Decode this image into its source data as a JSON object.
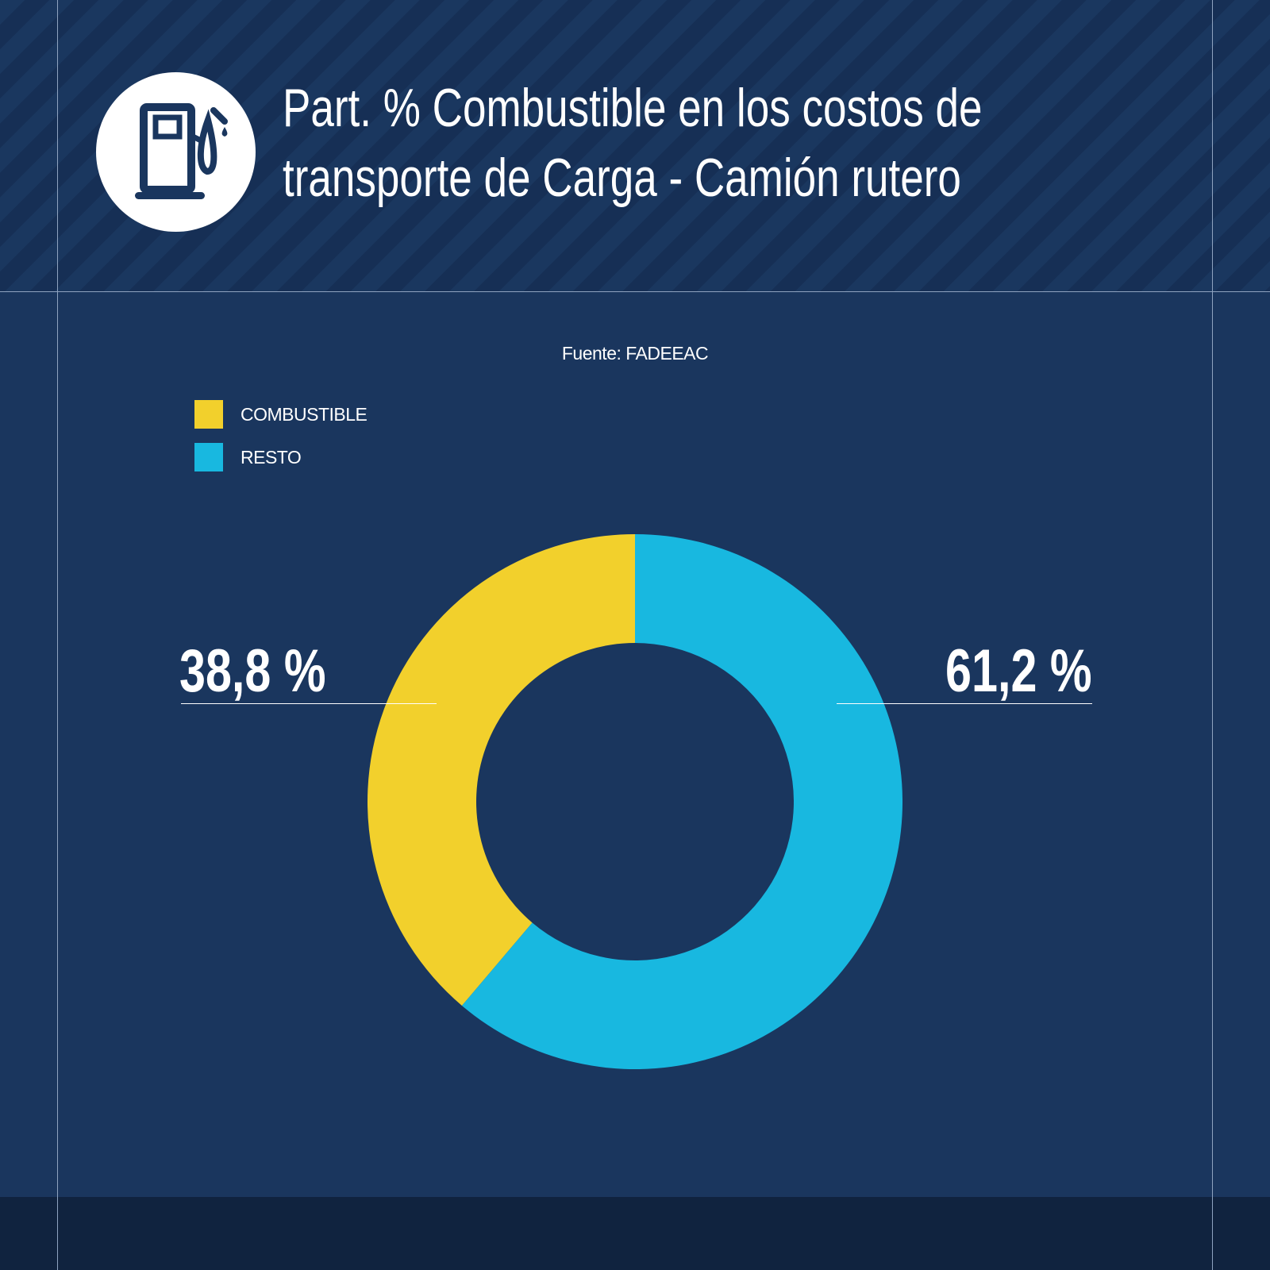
{
  "header": {
    "title_line1": "Part. % Combustible en los costos de",
    "title_line2": "transporte de Carga - Camión rutero",
    "icon": "fuel-pump-icon"
  },
  "source": "Fuente: FADEEAC",
  "colors": {
    "background": "#1a365e",
    "combustible": "#f2d02c",
    "resto": "#18b8e0"
  },
  "chart_data": {
    "type": "pie",
    "variant": "donut",
    "categories": [
      "COMBUSTIBLE",
      "RESTO"
    ],
    "values": [
      38.8,
      61.2
    ],
    "data_labels": [
      "38,8 %",
      "61,2 %"
    ],
    "colors": [
      "#f2d02c",
      "#18b8e0"
    ],
    "legend": "top-left"
  }
}
